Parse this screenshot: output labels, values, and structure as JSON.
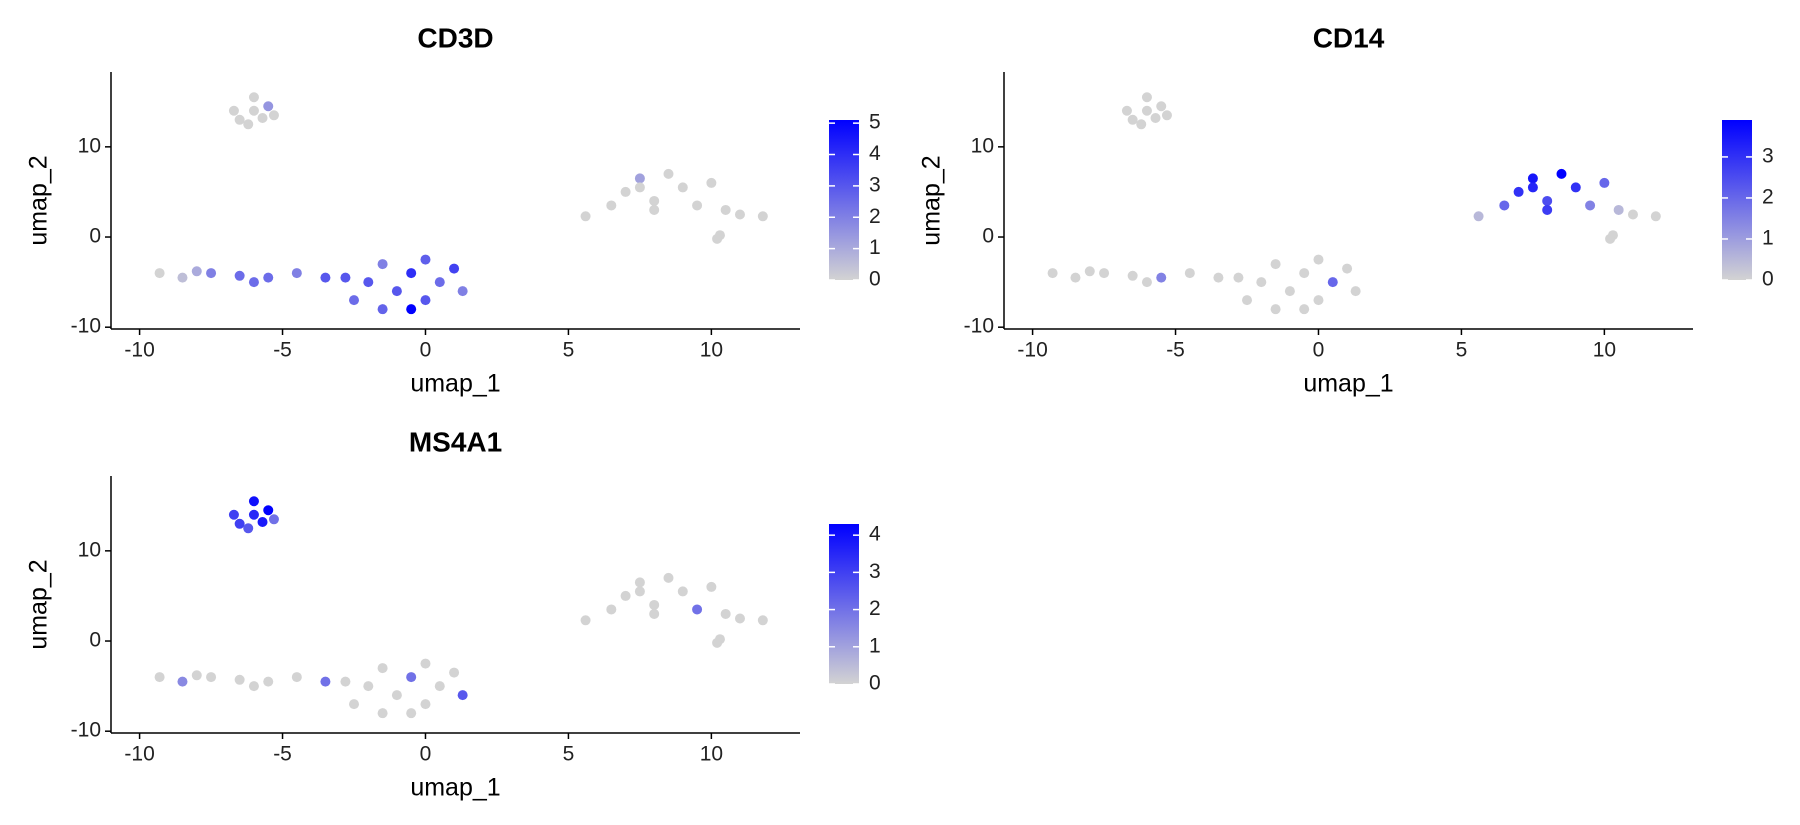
{
  "chart_data": [
    {
      "type": "scatter",
      "title": "CD3D",
      "x_label": "umap_1",
      "y_label": "umap_2",
      "x": [
        -6.5,
        -6,
        -5.5,
        -6.2,
        -5.7,
        -6.7,
        -5.3,
        -6,
        -9.3,
        -8.5,
        -7.5,
        -6.5,
        -5.5,
        -4.5,
        -3.5,
        -8,
        -6,
        -2.5,
        -2,
        -1.5,
        -1,
        -0.5,
        0,
        0,
        0.5,
        1,
        1.3,
        -1.5,
        -2.8,
        -0.5,
        5.6,
        6.5,
        7,
        7.5,
        8,
        8.5,
        9,
        9.5,
        10,
        10.5,
        11,
        11.8,
        8,
        7.5,
        10.3,
        10.2
      ],
      "y": [
        13,
        14,
        14.5,
        12.5,
        13.2,
        14,
        13.5,
        15.5,
        -4,
        -4.5,
        -4,
        -4.3,
        -4.5,
        -4,
        -4.5,
        -3.8,
        -5,
        -7,
        -5,
        -3,
        -6,
        -4,
        -2.5,
        -7,
        -5,
        -3.5,
        -6,
        -8,
        -4.5,
        -8,
        2.3,
        3.5,
        5,
        6.5,
        4,
        7,
        5.5,
        3.5,
        6,
        3,
        2.5,
        2.3,
        3,
        5.5,
        0.2,
        -0.2
      ],
      "values": [
        0,
        0,
        1.5,
        0,
        0,
        0,
        0,
        0,
        0,
        0.5,
        2,
        2.5,
        2.5,
        2,
        3,
        1,
        2.5,
        2.5,
        3,
        2,
        3,
        4,
        2.8,
        3,
        2.5,
        3.5,
        2,
        2.7,
        3,
        5.1,
        0,
        0,
        0,
        1.2,
        0,
        0,
        0,
        0,
        0,
        0,
        0,
        0,
        0,
        0,
        0,
        0
      ],
      "xlim": [
        -11,
        13.1
      ],
      "ylim": [
        -10.2,
        18.3
      ],
      "xticks": [
        -10,
        -5,
        0,
        5,
        10
      ],
      "yticks": [
        -10,
        0,
        10
      ],
      "clim": [
        0,
        5.1
      ],
      "cticks": [
        0,
        1,
        2,
        3,
        4,
        5
      ],
      "low_color": "#d3d3d3",
      "high_color": "#0000ff"
    },
    {
      "type": "scatter",
      "title": "CD14",
      "x_label": "umap_1",
      "y_label": "umap_2",
      "x": [
        -6.5,
        -6,
        -5.5,
        -6.2,
        -5.7,
        -6.7,
        -5.3,
        -6,
        -9.3,
        -8.5,
        -7.5,
        -6.5,
        -5.5,
        -4.5,
        -3.5,
        -8,
        -6,
        -2.5,
        -2,
        -1.5,
        -1,
        -0.5,
        0,
        0,
        0.5,
        1,
        1.3,
        -1.5,
        -2.8,
        -0.5,
        5.6,
        6.5,
        7,
        7.5,
        8,
        8.5,
        9,
        9.5,
        10,
        10.5,
        11,
        11.8,
        8,
        7.5,
        10.3,
        10.2
      ],
      "y": [
        13,
        14,
        14.5,
        12.5,
        13.2,
        14,
        13.5,
        15.5,
        -4,
        -4.5,
        -4,
        -4.3,
        -4.5,
        -4,
        -4.5,
        -3.8,
        -5,
        -7,
        -5,
        -3,
        -6,
        -4,
        -2.5,
        -7,
        -5,
        -3.5,
        -6,
        -8,
        -4.5,
        -8,
        2.3,
        3.5,
        5,
        6.5,
        4,
        7,
        5.5,
        3.5,
        6,
        3,
        2.5,
        2.3,
        3,
        5.5,
        0.2,
        -0.2
      ],
      "values": [
        0,
        0,
        0,
        0,
        0,
        0,
        0,
        0,
        0,
        0,
        0,
        0,
        1.5,
        0,
        0,
        0,
        0,
        0,
        0,
        0,
        0,
        0,
        0,
        0,
        2,
        0,
        0,
        0,
        0,
        0,
        0.5,
        2,
        3,
        3.5,
        2.5,
        3.9,
        3,
        1.5,
        2,
        0.5,
        0,
        0,
        2.8,
        3.2,
        0,
        0
      ],
      "xlim": [
        -11,
        13.1
      ],
      "ylim": [
        -10.2,
        18.3
      ],
      "xticks": [
        -10,
        -5,
        0,
        5,
        10
      ],
      "yticks": [
        -10,
        0,
        10
      ],
      "clim": [
        0,
        3.9
      ],
      "cticks": [
        0,
        1,
        2,
        3
      ],
      "low_color": "#d3d3d3",
      "high_color": "#0000ff"
    },
    {
      "type": "scatter",
      "title": "MS4A1",
      "x_label": "umap_1",
      "y_label": "umap_2",
      "x": [
        -6.5,
        -6,
        -5.5,
        -6.2,
        -5.7,
        -6.7,
        -5.3,
        -6,
        -9.3,
        -8.5,
        -7.5,
        -6.5,
        -5.5,
        -4.5,
        -3.5,
        -8,
        -6,
        -2.5,
        -2,
        -1.5,
        -1,
        -0.5,
        0,
        0,
        0.5,
        1,
        1.3,
        -1.5,
        -2.8,
        -0.5,
        5.6,
        6.5,
        7,
        7.5,
        8,
        8.5,
        9,
        9.5,
        10,
        10.5,
        11,
        11.8,
        8,
        7.5,
        10.3,
        10.2
      ],
      "y": [
        13,
        14,
        14.5,
        12.5,
        13.2,
        14,
        13.5,
        15.5,
        -4,
        -4.5,
        -4,
        -4.3,
        -4.5,
        -4,
        -4.5,
        -3.8,
        -5,
        -7,
        -5,
        -3,
        -6,
        -4,
        -2.5,
        -7,
        -5,
        -3.5,
        -6,
        -8,
        -4.5,
        -8,
        2.3,
        3.5,
        5,
        6.5,
        4,
        7,
        5.5,
        3.5,
        6,
        3,
        2.5,
        2.3,
        3,
        5.5,
        0.2,
        -0.2
      ],
      "values": [
        3,
        3.5,
        4.3,
        2.5,
        3.8,
        3,
        2,
        4,
        0,
        1.5,
        0,
        0,
        0,
        0,
        2,
        0,
        0,
        0,
        0,
        0,
        0,
        2,
        0,
        0,
        0,
        0,
        2.5,
        0,
        0,
        0,
        0,
        0,
        0,
        0,
        0,
        0,
        0,
        2,
        0,
        0,
        0,
        0,
        0,
        0,
        0,
        0
      ],
      "xlim": [
        -11,
        13.1
      ],
      "ylim": [
        -10.2,
        18.3
      ],
      "xticks": [
        -10,
        -5,
        0,
        5,
        10
      ],
      "yticks": [
        -10,
        0,
        10
      ],
      "clim": [
        0,
        4.3
      ],
      "cticks": [
        0,
        1,
        2,
        3,
        4
      ],
      "low_color": "#d3d3d3",
      "high_color": "#0000ff"
    }
  ]
}
